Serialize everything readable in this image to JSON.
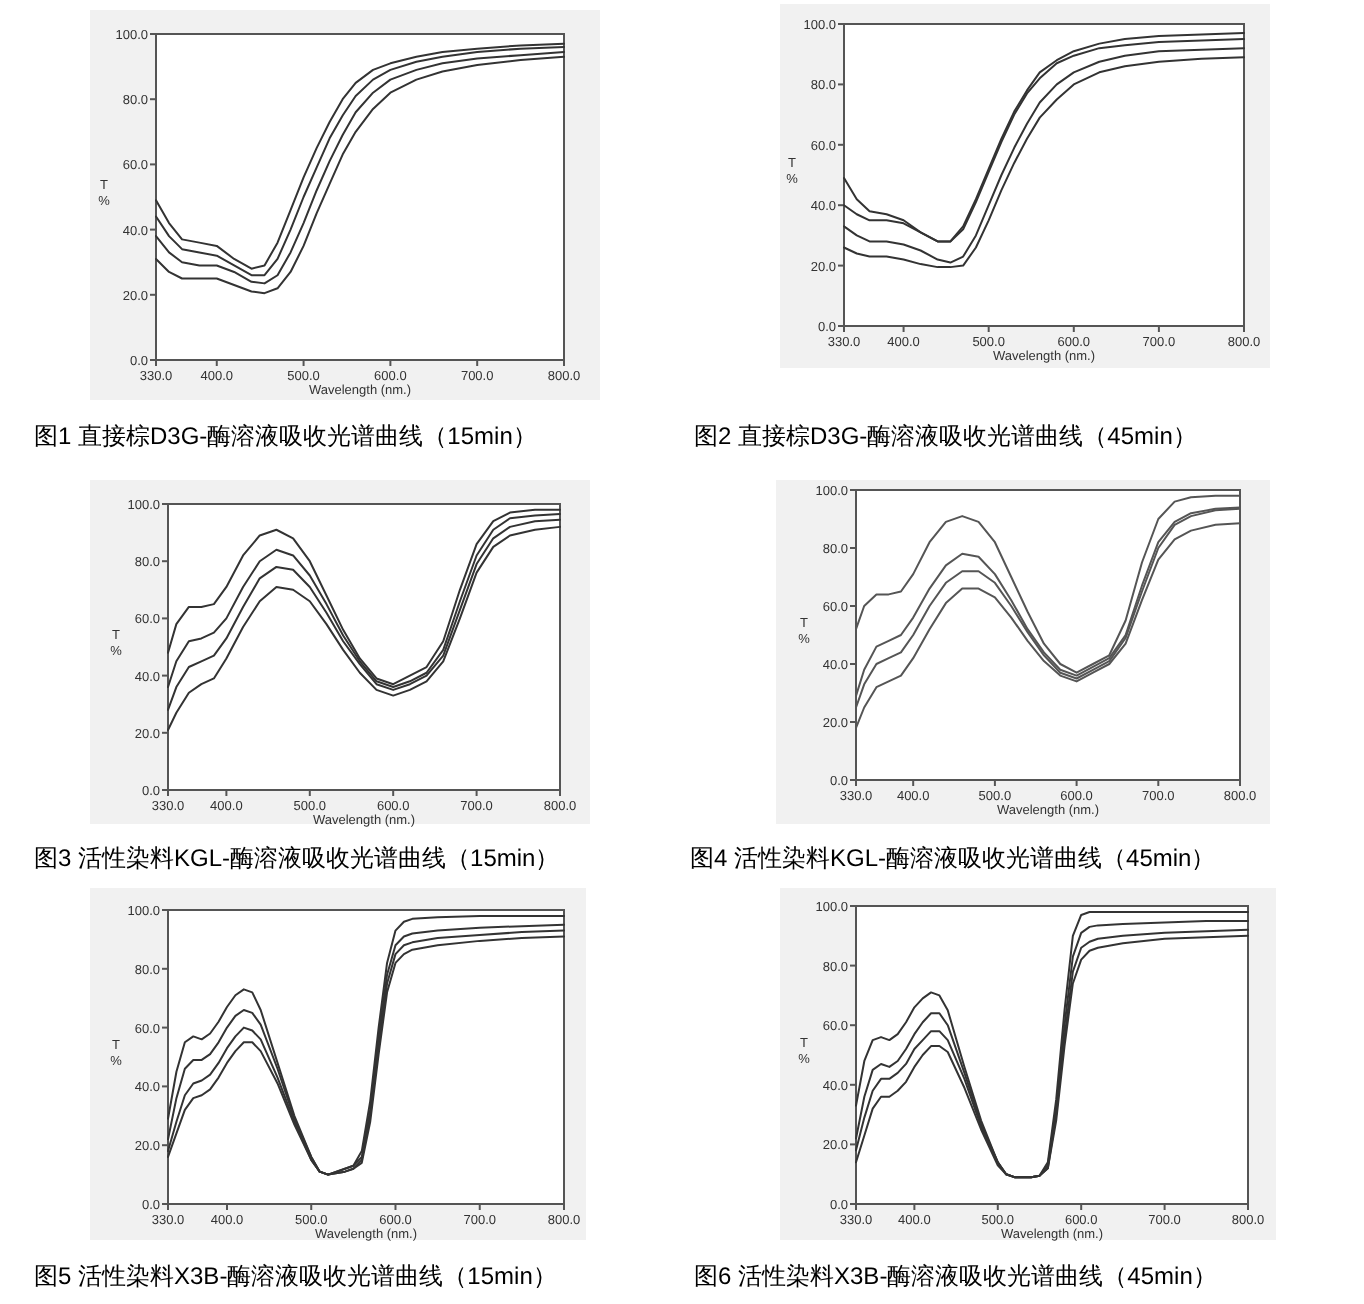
{
  "chart_data": [
    {
      "type": "line",
      "title": "图1  直接棕D3G-酶溶液吸收光谱曲线（15min）",
      "xlabel": "Wavelength (nm.)",
      "ylabel": "T %",
      "xlim": [
        330,
        800
      ],
      "ylim": [
        0,
        100
      ],
      "xticks": [
        {
          "value": 330,
          "label": "330.0"
        },
        {
          "value": 400,
          "label": "400.0"
        },
        {
          "value": 500,
          "label": "500.0"
        },
        {
          "value": 600,
          "label": "600.0"
        },
        {
          "value": 700,
          "label": "700.0"
        },
        {
          "value": 800,
          "label": "800.0"
        }
      ],
      "yticks": [
        {
          "value": 0,
          "label": "0.0"
        },
        {
          "value": 20,
          "label": "20.0"
        },
        {
          "value": 40,
          "label": "40.0"
        },
        {
          "value": 60,
          "label": "60.0"
        },
        {
          "value": 80,
          "label": "80.0"
        },
        {
          "value": 100,
          "label": "100.0"
        }
      ],
      "x": [
        330,
        345,
        360,
        380,
        400,
        420,
        440,
        455,
        470,
        485,
        500,
        515,
        530,
        545,
        560,
        580,
        600,
        630,
        660,
        700,
        750,
        800
      ],
      "series": [
        {
          "color": "#333333",
          "values": [
            49,
            42,
            37,
            36,
            35,
            31,
            28,
            29,
            36,
            46,
            56,
            65,
            73,
            80,
            85,
            89,
            91,
            93,
            94.5,
            95.5,
            96.5,
            97
          ]
        },
        {
          "color": "#333333",
          "values": [
            44,
            38,
            34,
            33,
            32,
            29,
            26,
            26,
            31,
            40,
            50,
            59,
            68,
            75,
            81,
            86,
            89,
            91.5,
            93,
            94.5,
            95.5,
            96
          ]
        },
        {
          "color": "#333333",
          "values": [
            38,
            33,
            30,
            29,
            29,
            27,
            24,
            23.5,
            26,
            33,
            42,
            52,
            61,
            69,
            76,
            82,
            86,
            89,
            91,
            92.5,
            93.5,
            94.5
          ]
        },
        {
          "color": "#333333",
          "values": [
            31,
            27,
            25,
            25,
            25,
            23,
            21,
            20.5,
            22,
            27,
            35,
            45,
            54,
            63,
            70,
            77,
            82,
            86,
            88.5,
            90.5,
            92,
            93
          ]
        }
      ]
    },
    {
      "type": "line",
      "title": "图2  直接棕D3G-酶溶液吸收光谱曲线（45min）",
      "xlabel": "Wavelength (nm.)",
      "ylabel": "T %",
      "xlim": [
        330,
        800
      ],
      "ylim": [
        0,
        100
      ],
      "xticks": [
        {
          "value": 330,
          "label": "330.0"
        },
        {
          "value": 400,
          "label": "400.0"
        },
        {
          "value": 500,
          "label": "500.0"
        },
        {
          "value": 600,
          "label": "600.0"
        },
        {
          "value": 700,
          "label": "700.0"
        },
        {
          "value": 800,
          "label": "800.0"
        }
      ],
      "yticks": [
        {
          "value": 0,
          "label": "0.0"
        },
        {
          "value": 20,
          "label": "20.0"
        },
        {
          "value": 40,
          "label": "40.0"
        },
        {
          "value": 60,
          "label": "60.0"
        },
        {
          "value": 80,
          "label": "80.0"
        },
        {
          "value": 100,
          "label": "100.0"
        }
      ],
      "x": [
        330,
        345,
        360,
        380,
        400,
        420,
        440,
        455,
        470,
        485,
        500,
        515,
        530,
        545,
        560,
        580,
        600,
        630,
        660,
        700,
        750,
        800
      ],
      "series": [
        {
          "color": "#333333",
          "values": [
            49,
            42,
            38,
            37,
            35,
            31,
            28,
            28,
            33,
            42,
            52,
            62,
            71,
            78,
            84,
            88,
            91,
            93.5,
            95,
            96,
            96.5,
            97
          ]
        },
        {
          "color": "#333333",
          "values": [
            40,
            37,
            35,
            35,
            34,
            31,
            28,
            28,
            32,
            41,
            51,
            61,
            70,
            77,
            82,
            87,
            89.5,
            92,
            93,
            94,
            94.5,
            95
          ]
        },
        {
          "color": "#333333",
          "values": [
            33,
            30,
            28,
            28,
            27,
            25,
            22,
            21,
            23,
            30,
            40,
            50,
            59,
            67,
            74,
            80,
            84,
            87.5,
            89.5,
            91,
            91.5,
            92
          ]
        },
        {
          "color": "#333333",
          "values": [
            26,
            24,
            23,
            23,
            22,
            20.5,
            19.5,
            19.5,
            20,
            26,
            35,
            45,
            54,
            62,
            69,
            75,
            80,
            84,
            86,
            87.5,
            88.5,
            89
          ]
        }
      ]
    },
    {
      "type": "line",
      "title": "图3  活性染料KGL-酶溶液吸收光谱曲线（15min）",
      "xlabel": "Wavelength (nm.)",
      "ylabel": "T %",
      "xlim": [
        330,
        800
      ],
      "ylim": [
        0,
        100
      ],
      "xticks": [
        {
          "value": 330,
          "label": "330.0"
        },
        {
          "value": 400,
          "label": "400.0"
        },
        {
          "value": 500,
          "label": "500.0"
        },
        {
          "value": 600,
          "label": "600.0"
        },
        {
          "value": 700,
          "label": "700.0"
        },
        {
          "value": 800,
          "label": "800.0"
        }
      ],
      "yticks": [
        {
          "value": 0,
          "label": "0.0"
        },
        {
          "value": 20,
          "label": "20.0"
        },
        {
          "value": 40,
          "label": "40.0"
        },
        {
          "value": 60,
          "label": "60.0"
        },
        {
          "value": 80,
          "label": "80.0"
        },
        {
          "value": 100,
          "label": "100.0"
        }
      ],
      "x": [
        330,
        340,
        355,
        370,
        385,
        400,
        420,
        440,
        460,
        480,
        500,
        520,
        540,
        560,
        580,
        600,
        620,
        640,
        660,
        680,
        700,
        720,
        740,
        770,
        800
      ],
      "series": [
        {
          "color": "#333333",
          "values": [
            48,
            58,
            64,
            64,
            65,
            71,
            82,
            89,
            91,
            88,
            80,
            68,
            56,
            46,
            39,
            37,
            40,
            43,
            52,
            70,
            86,
            94,
            97,
            98,
            98
          ]
        },
        {
          "color": "#333333",
          "values": [
            36,
            45,
            52,
            53,
            55,
            60,
            71,
            80,
            84,
            82,
            75,
            65,
            54,
            45,
            38,
            36,
            38,
            41,
            49,
            66,
            82,
            91,
            95,
            96,
            96.5
          ]
        },
        {
          "color": "#333333",
          "values": [
            28,
            36,
            43,
            45,
            47,
            53,
            64,
            74,
            78,
            77,
            71,
            62,
            52,
            44,
            37,
            35,
            37,
            40,
            47,
            63,
            79,
            88,
            92,
            94,
            94.5
          ]
        },
        {
          "color": "#333333",
          "values": [
            21,
            27,
            34,
            37,
            39,
            46,
            57,
            66,
            71,
            70,
            66,
            58,
            49,
            41,
            35,
            33,
            35,
            38,
            45,
            60,
            76,
            85,
            89,
            91,
            92
          ]
        }
      ]
    },
    {
      "type": "line",
      "title": "图4 活性染料KGL-酶溶液吸收光谱曲线（45min）",
      "xlabel": "Wavelength (nm.)",
      "ylabel": "T %",
      "xlim": [
        330,
        800
      ],
      "ylim": [
        0,
        100
      ],
      "xticks": [
        {
          "value": 330,
          "label": "330.0"
        },
        {
          "value": 400,
          "label": "400.0"
        },
        {
          "value": 500,
          "label": "500.0"
        },
        {
          "value": 600,
          "label": "600.0"
        },
        {
          "value": 700,
          "label": "700.0"
        },
        {
          "value": 800,
          "label": "800.0"
        }
      ],
      "yticks": [
        {
          "value": 0,
          "label": "0.0"
        },
        {
          "value": 20,
          "label": "20.0"
        },
        {
          "value": 40,
          "label": "40.0"
        },
        {
          "value": 60,
          "label": "60.0"
        },
        {
          "value": 80,
          "label": "80.0"
        },
        {
          "value": 100,
          "label": "100.0"
        }
      ],
      "x": [
        330,
        340,
        355,
        370,
        385,
        400,
        420,
        440,
        460,
        480,
        500,
        520,
        540,
        560,
        580,
        600,
        620,
        640,
        660,
        680,
        700,
        720,
        740,
        770,
        800
      ],
      "series": [
        {
          "color": "#555555",
          "values": [
            52,
            60,
            64,
            64,
            65,
            71,
            82,
            89,
            91,
            89,
            82,
            70,
            58,
            47,
            40,
            37,
            40,
            43,
            55,
            75,
            90,
            96,
            97.5,
            98,
            98
          ]
        },
        {
          "color": "#555555",
          "values": [
            29,
            38,
            46,
            48,
            50,
            56,
            66,
            74,
            78,
            77,
            71,
            62,
            52,
            44,
            38,
            36,
            39,
            42,
            50,
            67,
            82,
            89,
            92,
            93.5,
            94
          ]
        },
        {
          "color": "#555555",
          "values": [
            25,
            33,
            40,
            42,
            44,
            50,
            60,
            68,
            72,
            72,
            68,
            60,
            51,
            43,
            37,
            35,
            38,
            41,
            49,
            65,
            80,
            88,
            91,
            93,
            93.5
          ]
        },
        {
          "color": "#555555",
          "values": [
            18,
            25,
            32,
            34,
            36,
            42,
            52,
            61,
            66,
            66,
            63,
            56,
            48,
            41,
            36,
            34,
            37,
            40,
            47,
            62,
            76,
            83,
            86,
            88,
            88.5
          ]
        }
      ]
    },
    {
      "type": "line",
      "title": "图5 活性染料X3B-酶溶液吸收光谱曲线（15min）",
      "xlabel": "Wavelength (nm.)",
      "ylabel": "T %",
      "xlim": [
        330,
        800
      ],
      "ylim": [
        0,
        100
      ],
      "xticks": [
        {
          "value": 330,
          "label": "330.0"
        },
        {
          "value": 400,
          "label": "400.0"
        },
        {
          "value": 500,
          "label": "500.0"
        },
        {
          "value": 600,
          "label": "600.0"
        },
        {
          "value": 700,
          "label": "700.0"
        },
        {
          "value": 800,
          "label": "800.0"
        }
      ],
      "yticks": [
        {
          "value": 0,
          "label": "0.0"
        },
        {
          "value": 20,
          "label": "20.0"
        },
        {
          "value": 40,
          "label": "40.0"
        },
        {
          "value": 60,
          "label": "60.0"
        },
        {
          "value": 80,
          "label": "80.0"
        },
        {
          "value": 100,
          "label": "100.0"
        }
      ],
      "x": [
        330,
        340,
        350,
        360,
        370,
        380,
        390,
        400,
        410,
        420,
        430,
        440,
        460,
        480,
        500,
        510,
        520,
        540,
        550,
        560,
        570,
        580,
        590,
        600,
        610,
        620,
        650,
        700,
        750,
        800
      ],
      "series": [
        {
          "color": "#333333",
          "values": [
            29,
            45,
            55,
            57,
            56,
            58,
            62,
            67,
            71,
            73,
            72,
            66,
            48,
            30,
            16,
            11,
            10,
            12,
            13,
            18,
            35,
            60,
            82,
            93,
            96,
            97,
            97.5,
            98,
            98,
            98
          ]
        },
        {
          "color": "#333333",
          "values": [
            22,
            36,
            46,
            49,
            49,
            51,
            55,
            60,
            64,
            66,
            65,
            61,
            46,
            29,
            16,
            11,
            10,
            12,
            13,
            16,
            32,
            57,
            78,
            88,
            91,
            92,
            93,
            94,
            94.5,
            95
          ]
        },
        {
          "color": "#333333",
          "values": [
            18,
            28,
            37,
            41,
            42,
            44,
            48,
            53,
            57,
            60,
            59,
            56,
            43,
            28,
            15,
            11,
            10,
            11,
            12,
            15,
            30,
            54,
            75,
            85,
            88,
            89,
            90.5,
            91.5,
            92.5,
            93
          ]
        },
        {
          "color": "#333333",
          "values": [
            16,
            24,
            32,
            36,
            37,
            39,
            43,
            48,
            52,
            55,
            55,
            52,
            41,
            27,
            15,
            11,
            10,
            11,
            12,
            14,
            28,
            51,
            72,
            82,
            85,
            86.5,
            88,
            89.5,
            90.5,
            91
          ]
        }
      ]
    },
    {
      "type": "line",
      "title": "图6 活性染料X3B-酶溶液吸收光谱曲线（45min）",
      "xlabel": "Wavelength (nm.)",
      "ylabel": "T %",
      "xlim": [
        330,
        800
      ],
      "ylim": [
        0,
        100
      ],
      "xticks": [
        {
          "value": 330,
          "label": "330.0"
        },
        {
          "value": 400,
          "label": "400.0"
        },
        {
          "value": 500,
          "label": "500.0"
        },
        {
          "value": 600,
          "label": "600.0"
        },
        {
          "value": 700,
          "label": "700.0"
        },
        {
          "value": 800,
          "label": "800.0"
        }
      ],
      "yticks": [
        {
          "value": 0,
          "label": "0.0"
        },
        {
          "value": 20,
          "label": "20.0"
        },
        {
          "value": 40,
          "label": "40.0"
        },
        {
          "value": 60,
          "label": "60.0"
        },
        {
          "value": 80,
          "label": "80.0"
        },
        {
          "value": 100,
          "label": "100.0"
        }
      ],
      "x": [
        330,
        340,
        350,
        360,
        370,
        380,
        390,
        400,
        410,
        420,
        430,
        440,
        460,
        480,
        500,
        510,
        520,
        540,
        550,
        560,
        570,
        580,
        590,
        600,
        610,
        620,
        650,
        700,
        750,
        800
      ],
      "series": [
        {
          "color": "#333333",
          "values": [
            33,
            48,
            55,
            56,
            55,
            57,
            61,
            66,
            69,
            71,
            70,
            65,
            46,
            28,
            14,
            10,
            9,
            9,
            9.5,
            14,
            35,
            65,
            90,
            97,
            98,
            98,
            98,
            98,
            98,
            98
          ]
        },
        {
          "color": "#333333",
          "values": [
            22,
            36,
            45,
            47,
            46,
            48,
            52,
            57,
            61,
            64,
            64,
            60,
            44,
            27,
            14,
            10,
            9,
            9,
            9.5,
            13,
            32,
            60,
            83,
            91,
            93,
            93.5,
            94,
            94.5,
            95,
            95
          ]
        },
        {
          "color": "#333333",
          "values": [
            18,
            29,
            38,
            42,
            42,
            44,
            47,
            52,
            55,
            58,
            58,
            55,
            42,
            26,
            14,
            10,
            9,
            9,
            9.5,
            12,
            30,
            56,
            78,
            86,
            88,
            89,
            90,
            91,
            91.5,
            92
          ]
        },
        {
          "color": "#333333",
          "values": [
            14,
            23,
            32,
            36,
            36,
            38,
            41,
            46,
            50,
            53,
            53,
            51,
            39,
            25,
            13,
            10,
            9,
            9,
            9.5,
            12,
            28,
            53,
            74,
            82,
            85,
            86,
            87.5,
            89,
            89.5,
            90
          ]
        }
      ]
    }
  ]
}
